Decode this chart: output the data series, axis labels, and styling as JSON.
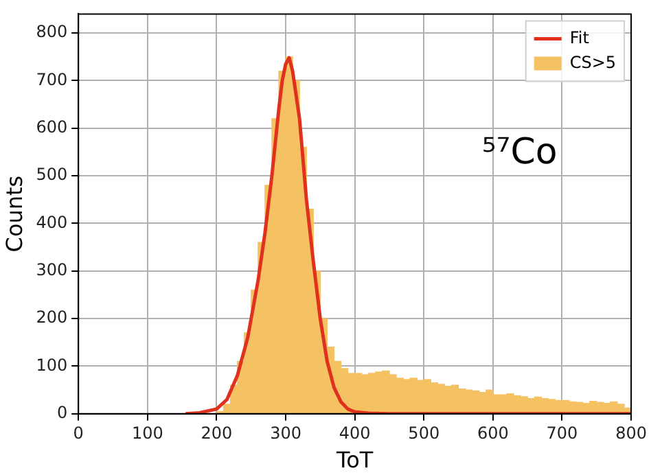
{
  "chart_data": {
    "type": "histogram",
    "xlabel": "ToT",
    "ylabel": "Counts",
    "annotations": [
      "⁵⁷Co"
    ],
    "bins": [
      200,
      210,
      220,
      230,
      240,
      250,
      260,
      270,
      280,
      290,
      300,
      310,
      320,
      330,
      340,
      350,
      360,
      370,
      380,
      390,
      400,
      410,
      420,
      430,
      440,
      450,
      460,
      470,
      480,
      490,
      500,
      510,
      520,
      530,
      540,
      550,
      560,
      570,
      580,
      590,
      600,
      610,
      620,
      630,
      640,
      650,
      660,
      670,
      680,
      690,
      700,
      710,
      720,
      730,
      740,
      750,
      760,
      770,
      780,
      790,
      800
    ],
    "series": [
      {
        "name": "Fit",
        "type": "line",
        "color": "#e0301e",
        "x": [
          155,
          175,
          200,
          215,
          230,
          245,
          260,
          270,
          280,
          290,
          295,
          300,
          305,
          310,
          320,
          330,
          340,
          350,
          360,
          370,
          380,
          390,
          400,
          420,
          450,
          500,
          600,
          700,
          800
        ],
        "values": [
          0,
          2,
          10,
          30,
          80,
          160,
          280,
          380,
          500,
          640,
          700,
          735,
          748,
          720,
          620,
          450,
          320,
          200,
          110,
          55,
          25,
          10,
          4,
          1,
          0,
          0,
          0,
          0,
          0
        ]
      },
      {
        "name": "CS>5",
        "color": "#f5c263",
        "values": [
          5,
          20,
          60,
          110,
          170,
          260,
          360,
          480,
          620,
          720,
          750,
          700,
          560,
          430,
          300,
          200,
          140,
          110,
          95,
          85,
          85,
          82,
          85,
          88,
          90,
          82,
          75,
          72,
          75,
          70,
          72,
          65,
          62,
          58,
          60,
          52,
          50,
          48,
          45,
          50,
          40,
          40,
          42,
          38,
          36,
          32,
          35,
          32,
          30,
          28,
          28,
          25,
          24,
          22,
          26,
          24,
          22,
          25,
          20,
          12
        ]
      }
    ],
    "xlim": [
      0,
      800
    ],
    "ylim": [
      0,
      840
    ],
    "xticks": [
      0,
      100,
      200,
      300,
      400,
      500,
      600,
      700,
      800
    ],
    "yticks": [
      0,
      100,
      200,
      300,
      400,
      500,
      600,
      700,
      800
    ],
    "grid": true,
    "legend": "top right"
  }
}
